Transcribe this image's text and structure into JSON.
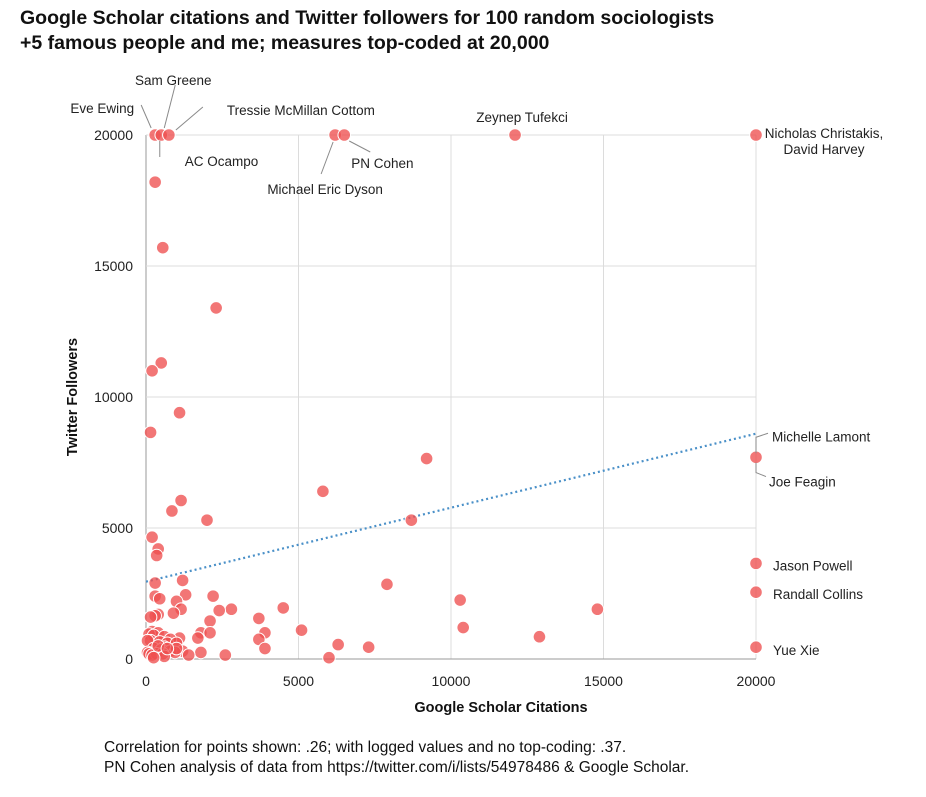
{
  "header": {
    "title_line1": "Google Scholar citations and Twitter followers for 100 random sociologists",
    "title_line2": "+5 famous people and me; measures top-coded at 20,000"
  },
  "footer": {
    "line1": "Correlation for points shown: .26; with logged values and no top-coding: .37.",
    "line2": "PN Cohen analysis of data from https://twitter.com/i/lists/54978486 & Google Scholar."
  },
  "chart_data": {
    "type": "scatter",
    "xlabel": "Google Scholar Citations",
    "ylabel": "Twitter Followers",
    "xlim": [
      0,
      20000
    ],
    "ylim": [
      0,
      20000
    ],
    "xticks": [
      "0",
      "5000",
      "10000",
      "15000",
      "20000"
    ],
    "yticks": [
      "0",
      "5000",
      "10000",
      "15000",
      "20000"
    ],
    "grid": true,
    "point_color": "#ee5050",
    "trend_color": "#4a90c8",
    "trendline": {
      "x": [
        0,
        20000
      ],
      "y": [
        2950,
        8600
      ]
    },
    "points": [
      [
        300,
        20000
      ],
      [
        500,
        20000
      ],
      [
        750,
        20000
      ],
      [
        6200,
        20000
      ],
      [
        6500,
        20000
      ],
      [
        12100,
        20000
      ],
      [
        20000,
        20000
      ],
      [
        300,
        18200
      ],
      [
        550,
        15700
      ],
      [
        2300,
        13400
      ],
      [
        500,
        11300
      ],
      [
        200,
        11000
      ],
      [
        1100,
        9400
      ],
      [
        150,
        8650
      ],
      [
        20000,
        7700
      ],
      [
        9200,
        7650
      ],
      [
        5800,
        6400
      ],
      [
        1150,
        6050
      ],
      [
        850,
        5650
      ],
      [
        2000,
        5300
      ],
      [
        8700,
        5300
      ],
      [
        200,
        4650
      ],
      [
        400,
        4200
      ],
      [
        350,
        3950
      ],
      [
        20000,
        3650
      ],
      [
        1200,
        3000
      ],
      [
        300,
        2900
      ],
      [
        7900,
        2850
      ],
      [
        20000,
        2550
      ],
      [
        300,
        2400
      ],
      [
        450,
        2300
      ],
      [
        1300,
        2450
      ],
      [
        2200,
        2400
      ],
      [
        1000,
        2200
      ],
      [
        10300,
        2250
      ],
      [
        4500,
        1950
      ],
      [
        2800,
        1900
      ],
      [
        1150,
        1900
      ],
      [
        2400,
        1850
      ],
      [
        14800,
        1900
      ],
      [
        900,
        1750
      ],
      [
        400,
        1700
      ],
      [
        300,
        1650
      ],
      [
        150,
        1600
      ],
      [
        3700,
        1550
      ],
      [
        2100,
        1450
      ],
      [
        10400,
        1200
      ],
      [
        5100,
        1100
      ],
      [
        200,
        1050
      ],
      [
        400,
        1000
      ],
      [
        1800,
        1000
      ],
      [
        2100,
        1000
      ],
      [
        3900,
        1000
      ],
      [
        100,
        950
      ],
      [
        250,
        900
      ],
      [
        600,
        850
      ],
      [
        1100,
        800
      ],
      [
        3700,
        750
      ],
      [
        800,
        750
      ],
      [
        1700,
        800
      ],
      [
        12900,
        850
      ],
      [
        150,
        700
      ],
      [
        450,
        650
      ],
      [
        50,
        700
      ],
      [
        700,
        600
      ],
      [
        1000,
        600
      ],
      [
        6300,
        550
      ],
      [
        3900,
        400
      ],
      [
        7300,
        450
      ],
      [
        600,
        450
      ],
      [
        20000,
        450
      ],
      [
        250,
        400
      ],
      [
        500,
        350
      ],
      [
        1200,
        300
      ],
      [
        1800,
        250
      ],
      [
        800,
        300
      ],
      [
        50,
        250
      ],
      [
        100,
        200
      ],
      [
        350,
        200
      ],
      [
        550,
        200
      ],
      [
        950,
        250
      ],
      [
        1400,
        150
      ],
      [
        2600,
        150
      ],
      [
        6000,
        50
      ],
      [
        200,
        150
      ],
      [
        600,
        100
      ],
      [
        1000,
        400
      ],
      [
        400,
        500
      ],
      [
        700,
        400
      ],
      [
        250,
        50
      ]
    ],
    "annotations": [
      {
        "text": "Eve Ewing",
        "x": 300,
        "y": 20000
      },
      {
        "text": "Sam Greene",
        "x": 500,
        "y": 20000
      },
      {
        "text": "Tressie McMillan Cottom",
        "x": 750,
        "y": 20000
      },
      {
        "text": "AC Ocampo",
        "x": 550,
        "y": 20000
      },
      {
        "text": "Zeynep Tufekci",
        "x": 12100,
        "y": 20000
      },
      {
        "text": "PN Cohen",
        "x": 6500,
        "y": 20000
      },
      {
        "text": "Michael Eric Dyson",
        "x": 6200,
        "y": 20000
      },
      {
        "text": "Nicholas Christakis,",
        "x": 20000,
        "y": 20000
      },
      {
        "text": "David Harvey",
        "x": 20000,
        "y": 20000
      },
      {
        "text": "Michelle Lamont",
        "x": 20000,
        "y": 7700
      },
      {
        "text": "Joe Feagin",
        "x": 20000,
        "y": 7650
      },
      {
        "text": "Jason Powell",
        "x": 20000,
        "y": 3650
      },
      {
        "text": "Randall Collins",
        "x": 20000,
        "y": 2550
      },
      {
        "text": "Yue Xie",
        "x": 20000,
        "y": 450
      }
    ]
  }
}
